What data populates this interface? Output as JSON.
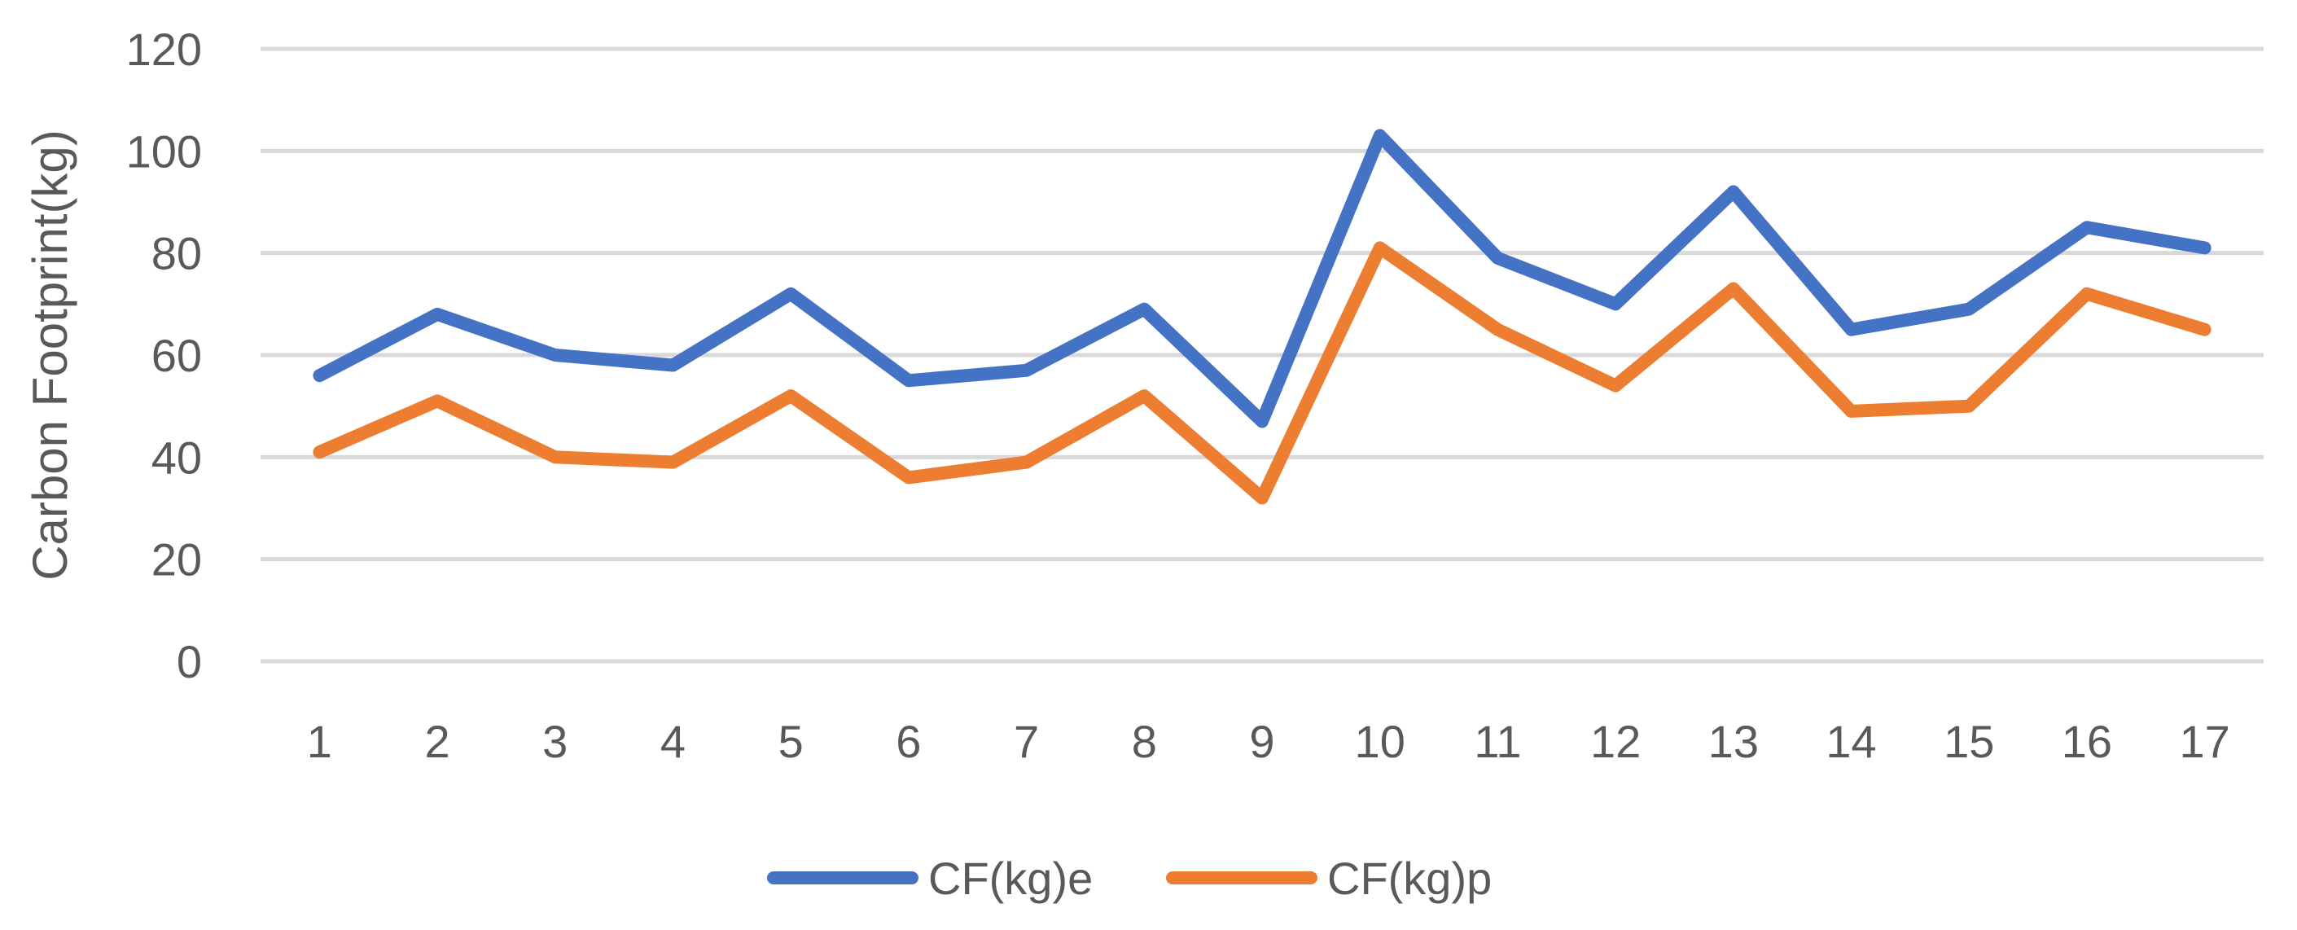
{
  "chart_data": {
    "type": "line",
    "title": "",
    "xlabel": "",
    "ylabel": "Carbon Footprint(kg)",
    "ylim": [
      0,
      120
    ],
    "yticks": [
      0,
      20,
      40,
      60,
      80,
      100,
      120
    ],
    "grid": true,
    "legend_position": "bottom",
    "categories": [
      "1",
      "2",
      "3",
      "4",
      "5",
      "6",
      "7",
      "8",
      "9",
      "10",
      "11",
      "12",
      "13",
      "14",
      "15",
      "16",
      "17"
    ],
    "series": [
      {
        "name": "CF(kg)e",
        "color": "#4472C4",
        "values": [
          56,
          68,
          60,
          58,
          72,
          55,
          57,
          69,
          47,
          103,
          79,
          70,
          92,
          65,
          69,
          85,
          81
        ]
      },
      {
        "name": "CF(kg)p",
        "color": "#ED7D31",
        "values": [
          41,
          51,
          40,
          39,
          52,
          36,
          39,
          52,
          32,
          81,
          65,
          54,
          73,
          49,
          50,
          72,
          65
        ]
      }
    ]
  }
}
